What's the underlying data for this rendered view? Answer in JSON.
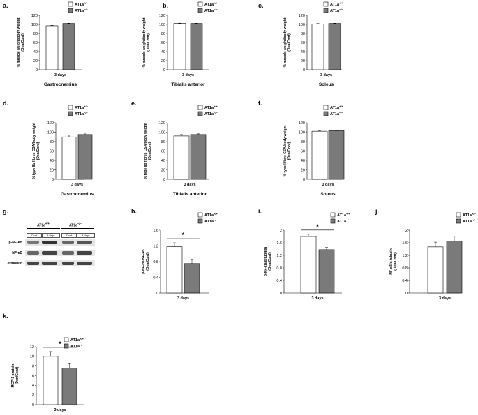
{
  "legend": {
    "wt": "AT1a",
    "wt_sup": "+/+",
    "ko": "AT1a",
    "ko_sup": "−/−"
  },
  "colors": {
    "wt": "#ffffff",
    "ko": "#7a7a7a",
    "band": "#444444",
    "blot_bg": "#e6e6e6"
  },
  "panels": {
    "a": {
      "label": "a."
    },
    "b": {
      "label": "b."
    },
    "c": {
      "label": "c."
    },
    "d": {
      "label": "d."
    },
    "e": {
      "label": "e."
    },
    "f": {
      "label": "f."
    },
    "g": {
      "label": "g."
    },
    "h": {
      "label": "h."
    },
    "i": {
      "label": "i."
    },
    "j": {
      "label": "j."
    },
    "k": {
      "label": "k."
    }
  },
  "blot": {
    "group_wt": "AT1a",
    "group_wt_sup": "+/+",
    "group_ko": "AT1a",
    "group_ko_sup": "−/−",
    "lanes": [
      "Cont",
      "3 days",
      "Cont",
      "3 days"
    ],
    "rows": [
      "p-NF-κB",
      "NF-κB",
      "α-tubulin"
    ]
  },
  "chart_data": [
    {
      "id": "a",
      "type": "bar",
      "categories": [
        "3 days"
      ],
      "series": [
        {
          "name": "AT1a+/+",
          "values": [
            97
          ],
          "err": [
            1
          ]
        },
        {
          "name": "AT1a−/−",
          "values": [
            102
          ],
          "err": [
            0.6
          ]
        }
      ],
      "title": "Gastrocnemius",
      "xlabel": "",
      "ylabel": "% muscle weight/body weight (Den/Cont)",
      "ylim": [
        0,
        120
      ],
      "yticks": [
        0,
        20,
        40,
        60,
        80,
        100,
        120
      ],
      "tick_labels": [
        "0",
        "20",
        "40",
        "60",
        "80",
        "100",
        "120"
      ],
      "sig": null
    },
    {
      "id": "b",
      "type": "bar",
      "categories": [
        "3 days"
      ],
      "series": [
        {
          "name": "AT1a+/+",
          "values": [
            102
          ],
          "err": [
            0.8
          ]
        },
        {
          "name": "AT1a−/−",
          "values": [
            102
          ],
          "err": [
            0.6
          ]
        }
      ],
      "title": "Tibialis anterior",
      "xlabel": "",
      "ylabel": "% muscle weight/body weight (Den/Cont)",
      "ylim": [
        0,
        120
      ],
      "yticks": [
        0,
        20,
        40,
        60,
        80,
        100,
        120
      ],
      "tick_labels": [
        "0",
        "20",
        "40",
        "60",
        "80",
        "100",
        "120"
      ],
      "sig": null
    },
    {
      "id": "c",
      "type": "bar",
      "categories": [
        "3 days"
      ],
      "series": [
        {
          "name": "AT1a+/+",
          "values": [
            101
          ],
          "err": [
            1.2
          ]
        },
        {
          "name": "AT1a−/−",
          "values": [
            102
          ],
          "err": [
            0.6
          ]
        }
      ],
      "title": "Soleus",
      "xlabel": "",
      "ylabel": "% muscle weight/body weight (Den/Cont)",
      "ylim": [
        0,
        120
      ],
      "yticks": [
        0,
        20,
        40,
        60,
        80,
        100,
        120
      ],
      "tick_labels": [
        "0",
        "20",
        "40",
        "60",
        "80",
        "100",
        "120"
      ],
      "sig": null
    },
    {
      "id": "d",
      "type": "bar",
      "categories": [
        "3 days"
      ],
      "series": [
        {
          "name": "AT1a+/+",
          "values": [
            90
          ],
          "err": [
            2
          ]
        },
        {
          "name": "AT1a−/−",
          "values": [
            95
          ],
          "err": [
            3
          ]
        }
      ],
      "title": "Gastrocnemius",
      "xlabel": "",
      "ylabel": "% type IIb fibres CSA/body weight (Den/Cont)",
      "ylim": [
        0,
        120
      ],
      "yticks": [
        0,
        20,
        40,
        60,
        80,
        100,
        120
      ],
      "tick_labels": [
        "0",
        "20",
        "40",
        "60",
        "80",
        "100",
        "120"
      ],
      "sig": null
    },
    {
      "id": "e",
      "type": "bar",
      "categories": [
        "3 days"
      ],
      "series": [
        {
          "name": "AT1a+/+",
          "values": [
            92
          ],
          "err": [
            3
          ]
        },
        {
          "name": "AT1a−/−",
          "values": [
            95
          ],
          "err": [
            1.5
          ]
        }
      ],
      "title": "Tibialis anterior",
      "xlabel": "",
      "ylabel": "% type IIb fibres CSA/body weight (Den/Cont)",
      "ylim": [
        0,
        120
      ],
      "yticks": [
        0,
        20,
        40,
        60,
        80,
        100,
        120
      ],
      "tick_labels": [
        "0",
        "20",
        "40",
        "60",
        "80",
        "100",
        "120"
      ],
      "sig": null
    },
    {
      "id": "f",
      "type": "bar",
      "categories": [
        "3 days"
      ],
      "series": [
        {
          "name": "AT1a+/+",
          "values": [
            102
          ],
          "err": [
            1.5
          ]
        },
        {
          "name": "AT1a−/−",
          "values": [
            103
          ],
          "err": [
            0.8
          ]
        }
      ],
      "title": "Soleus",
      "xlabel": "",
      "ylabel": "% type I fibre CSA/body weight (Den/Cont)",
      "ylim": [
        0,
        120
      ],
      "yticks": [
        0,
        20,
        40,
        60,
        80,
        100,
        120
      ],
      "tick_labels": [
        "0",
        "20",
        "40",
        "60",
        "80",
        "100",
        "120"
      ],
      "sig": null
    },
    {
      "id": "h",
      "type": "bar",
      "categories": [
        "3 days"
      ],
      "series": [
        {
          "name": "AT1a+/+",
          "values": [
            1.18
          ],
          "err": [
            0.1
          ]
        },
        {
          "name": "AT1a−/−",
          "values": [
            0.75
          ],
          "err": [
            0.09
          ]
        }
      ],
      "title": "",
      "xlabel": "",
      "ylabel": "p-NF-κB/NF-κB (Den/Cont)",
      "ylim": [
        0,
        1.6
      ],
      "yticks": [
        0,
        0.4,
        0.8,
        1.2,
        1.6
      ],
      "tick_labels": [
        "0",
        "0.4",
        "0.8",
        "1.2",
        "1.6"
      ],
      "sig": "*"
    },
    {
      "id": "i",
      "type": "bar",
      "categories": [
        "3 days"
      ],
      "series": [
        {
          "name": "AT1a+/+",
          "values": [
            1.8
          ],
          "err": [
            0.07
          ]
        },
        {
          "name": "AT1a−/−",
          "values": [
            1.38
          ],
          "err": [
            0.07
          ]
        }
      ],
      "title": "",
      "xlabel": "",
      "ylabel": "p-NF-κB/α-tubulin (Den/Cont)",
      "ylim": [
        0,
        2
      ],
      "yticks": [
        0,
        0.4,
        0.8,
        1.2,
        1.6,
        2
      ],
      "tick_labels": [
        "0",
        "0.4",
        "0.8",
        "1.2",
        "1.6",
        "2"
      ],
      "sig": "*"
    },
    {
      "id": "j",
      "type": "bar",
      "categories": [
        "3 days"
      ],
      "series": [
        {
          "name": "AT1a+/+",
          "values": [
            1.47
          ],
          "err": [
            0.15
          ]
        },
        {
          "name": "AT1a−/−",
          "values": [
            1.66
          ],
          "err": [
            0.15
          ]
        }
      ],
      "title": "",
      "xlabel": "",
      "ylabel": "NF-κB/α-tubulin (Den/Cont)",
      "ylim": [
        0,
        2
      ],
      "yticks": [
        0,
        0.4,
        0.8,
        1.2,
        1.6,
        2
      ],
      "tick_labels": [
        "0",
        "0.4",
        "0.8",
        "1.2",
        "1.6",
        "2"
      ],
      "sig": null
    },
    {
      "id": "k",
      "type": "bar",
      "categories": [
        "3 days"
      ],
      "series": [
        {
          "name": "AT1a+/+",
          "values": [
            10
          ],
          "err": [
            1
          ]
        },
        {
          "name": "AT1a−/−",
          "values": [
            7.6
          ],
          "err": [
            0.9
          ]
        }
      ],
      "title": "",
      "xlabel": "",
      "ylabel": "MCP-1 protein (Den/Cont)",
      "ylim": [
        0,
        12
      ],
      "yticks": [
        0,
        2,
        4,
        6,
        8,
        10,
        12
      ],
      "tick_labels": [
        "0",
        "2",
        "4",
        "6",
        "8",
        "10",
        "12"
      ],
      "sig": "*"
    }
  ]
}
